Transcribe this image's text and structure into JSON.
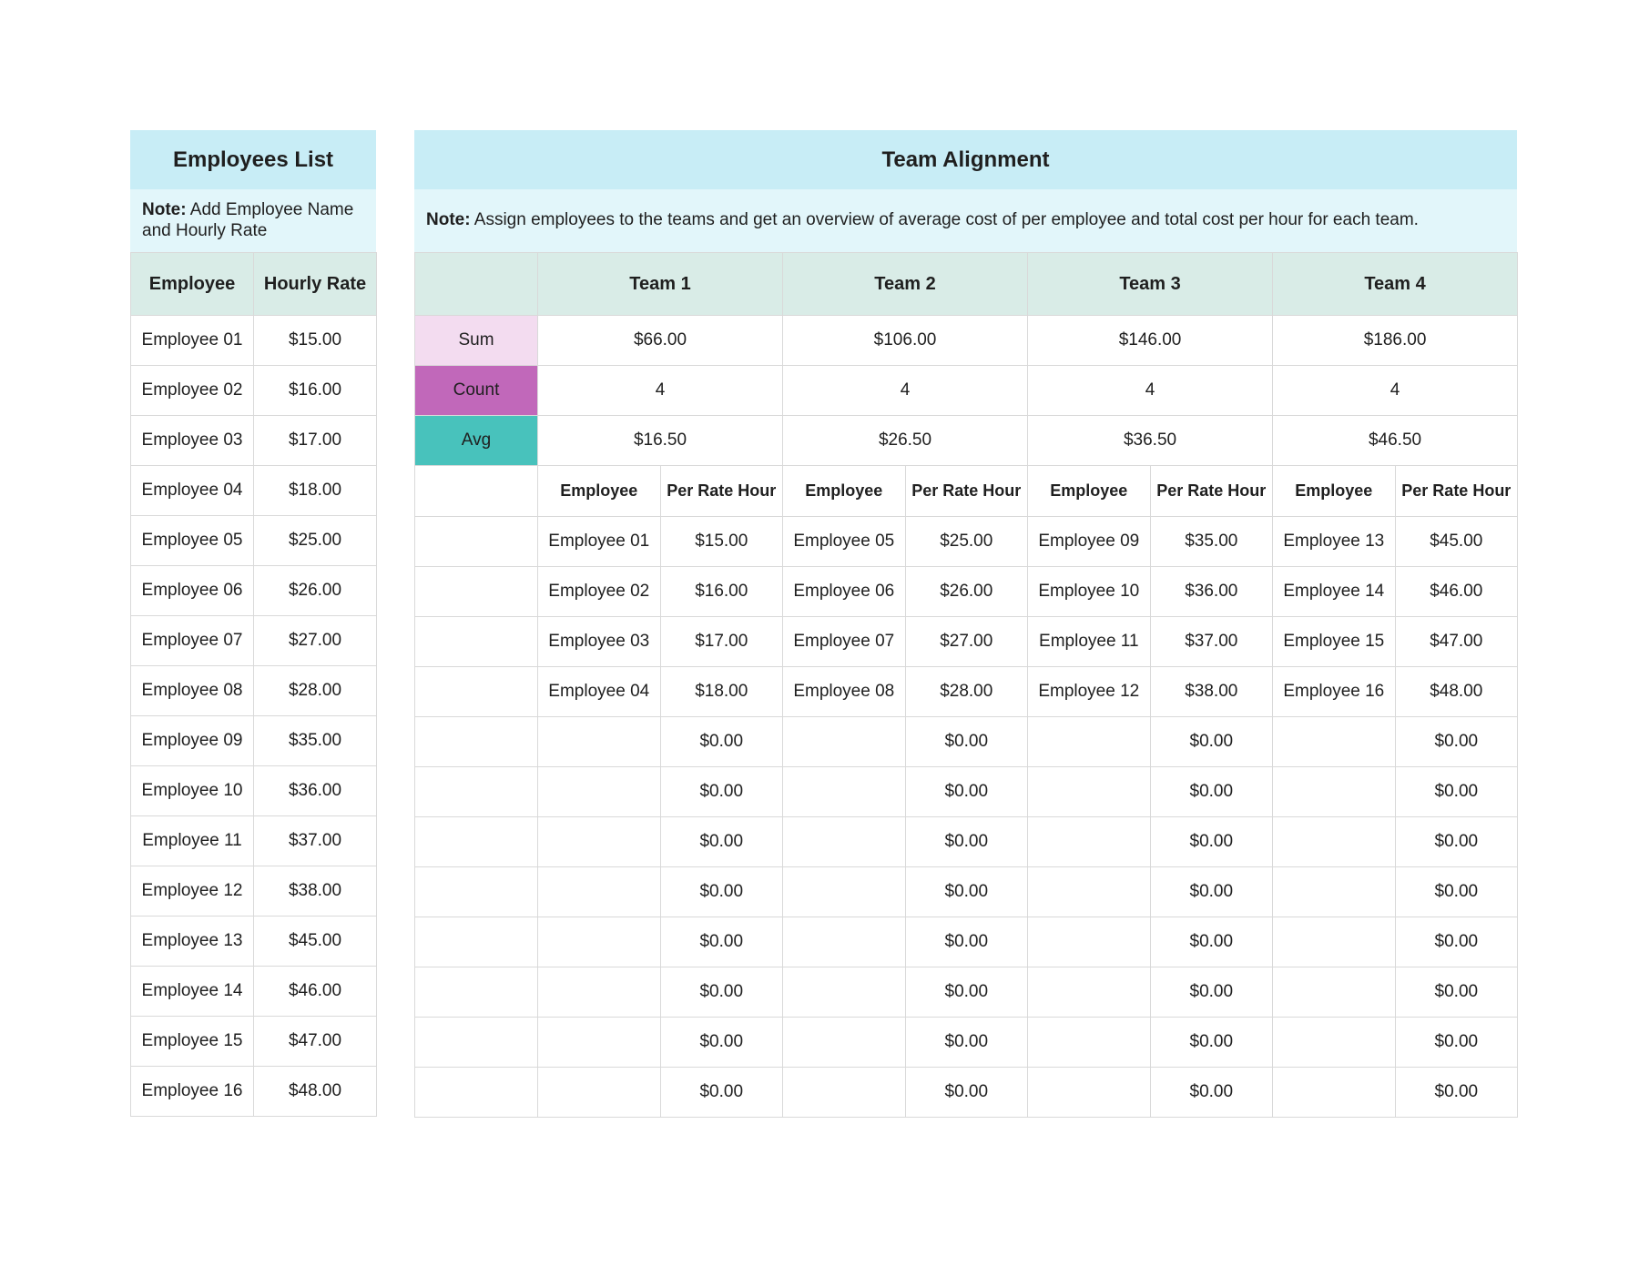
{
  "colors": {
    "title_band_bg": "#c8edf6",
    "note_band_bg": "#e2f6fa",
    "column_header_bg": "#d9ece7",
    "sum_label_bg": "#f3dcf0",
    "count_label_bg": "#c168ba",
    "avg_label_bg": "#48c2bc",
    "grid_border": "#d9d9d9",
    "text": "#1f1f1f"
  },
  "employees_list": {
    "title": "Employees List",
    "note_label": "Note:",
    "note_text": " Add Employee Name and Hourly Rate",
    "columns": [
      "Employee",
      "Hourly Rate"
    ],
    "rows": [
      {
        "name": "Employee 01",
        "rate": "$15.00"
      },
      {
        "name": "Employee 02",
        "rate": "$16.00"
      },
      {
        "name": "Employee 03",
        "rate": "$17.00"
      },
      {
        "name": "Employee 04",
        "rate": "$18.00"
      },
      {
        "name": "Employee 05",
        "rate": "$25.00"
      },
      {
        "name": "Employee 06",
        "rate": "$26.00"
      },
      {
        "name": "Employee 07",
        "rate": "$27.00"
      },
      {
        "name": "Employee 08",
        "rate": "$28.00"
      },
      {
        "name": "Employee 09",
        "rate": "$35.00"
      },
      {
        "name": "Employee 10",
        "rate": "$36.00"
      },
      {
        "name": "Employee 11",
        "rate": "$37.00"
      },
      {
        "name": "Employee 12",
        "rate": "$38.00"
      },
      {
        "name": "Employee 13",
        "rate": "$45.00"
      },
      {
        "name": "Employee 14",
        "rate": "$46.00"
      },
      {
        "name": "Employee 15",
        "rate": "$47.00"
      },
      {
        "name": "Employee 16",
        "rate": "$48.00"
      }
    ]
  },
  "team_alignment": {
    "title": "Team Alignment",
    "note_label": "Note:",
    "note_text": " Assign employees to the teams and get an overview of average cost of per employee and total cost per hour for each team.",
    "teams": [
      "Team 1",
      "Team 2",
      "Team 3",
      "Team 4"
    ],
    "summary_rows": [
      {
        "label": "Sum",
        "color": "#f3dcf0",
        "values": [
          "$66.00",
          "$106.00",
          "$146.00",
          "$186.00"
        ]
      },
      {
        "label": "Count",
        "color": "#c168ba",
        "values": [
          "4",
          "4",
          "4",
          "4"
        ]
      },
      {
        "label": "Avg",
        "color": "#48c2bc",
        "values": [
          "$16.50",
          "$26.50",
          "$36.50",
          "$46.50"
        ]
      }
    ],
    "sub_columns": [
      "Employee",
      "Per Rate Hour"
    ],
    "assignment_rows": [
      {
        "cells": [
          {
            "employee": "Employee 01",
            "rate": "$15.00"
          },
          {
            "employee": "Employee 05",
            "rate": "$25.00"
          },
          {
            "employee": "Employee 09",
            "rate": "$35.00"
          },
          {
            "employee": "Employee 13",
            "rate": "$45.00"
          }
        ]
      },
      {
        "cells": [
          {
            "employee": "Employee 02",
            "rate": "$16.00"
          },
          {
            "employee": "Employee 06",
            "rate": "$26.00"
          },
          {
            "employee": "Employee 10",
            "rate": "$36.00"
          },
          {
            "employee": "Employee 14",
            "rate": "$46.00"
          }
        ]
      },
      {
        "cells": [
          {
            "employee": "Employee 03",
            "rate": "$17.00"
          },
          {
            "employee": "Employee 07",
            "rate": "$27.00"
          },
          {
            "employee": "Employee 11",
            "rate": "$37.00"
          },
          {
            "employee": "Employee 15",
            "rate": "$47.00"
          }
        ]
      },
      {
        "cells": [
          {
            "employee": "Employee 04",
            "rate": "$18.00"
          },
          {
            "employee": "Employee 08",
            "rate": "$28.00"
          },
          {
            "employee": "Employee 12",
            "rate": "$38.00"
          },
          {
            "employee": "Employee 16",
            "rate": "$48.00"
          }
        ]
      },
      {
        "cells": [
          {
            "employee": "",
            "rate": "$0.00"
          },
          {
            "employee": "",
            "rate": "$0.00"
          },
          {
            "employee": "",
            "rate": "$0.00"
          },
          {
            "employee": "",
            "rate": "$0.00"
          }
        ]
      },
      {
        "cells": [
          {
            "employee": "",
            "rate": "$0.00"
          },
          {
            "employee": "",
            "rate": "$0.00"
          },
          {
            "employee": "",
            "rate": "$0.00"
          },
          {
            "employee": "",
            "rate": "$0.00"
          }
        ]
      },
      {
        "cells": [
          {
            "employee": "",
            "rate": "$0.00"
          },
          {
            "employee": "",
            "rate": "$0.00"
          },
          {
            "employee": "",
            "rate": "$0.00"
          },
          {
            "employee": "",
            "rate": "$0.00"
          }
        ]
      },
      {
        "cells": [
          {
            "employee": "",
            "rate": "$0.00"
          },
          {
            "employee": "",
            "rate": "$0.00"
          },
          {
            "employee": "",
            "rate": "$0.00"
          },
          {
            "employee": "",
            "rate": "$0.00"
          }
        ]
      },
      {
        "cells": [
          {
            "employee": "",
            "rate": "$0.00"
          },
          {
            "employee": "",
            "rate": "$0.00"
          },
          {
            "employee": "",
            "rate": "$0.00"
          },
          {
            "employee": "",
            "rate": "$0.00"
          }
        ]
      },
      {
        "cells": [
          {
            "employee": "",
            "rate": "$0.00"
          },
          {
            "employee": "",
            "rate": "$0.00"
          },
          {
            "employee": "",
            "rate": "$0.00"
          },
          {
            "employee": "",
            "rate": "$0.00"
          }
        ]
      },
      {
        "cells": [
          {
            "employee": "",
            "rate": "$0.00"
          },
          {
            "employee": "",
            "rate": "$0.00"
          },
          {
            "employee": "",
            "rate": "$0.00"
          },
          {
            "employee": "",
            "rate": "$0.00"
          }
        ]
      },
      {
        "cells": [
          {
            "employee": "",
            "rate": "$0.00"
          },
          {
            "employee": "",
            "rate": "$0.00"
          },
          {
            "employee": "",
            "rate": "$0.00"
          },
          {
            "employee": "",
            "rate": "$0.00"
          }
        ]
      }
    ]
  }
}
